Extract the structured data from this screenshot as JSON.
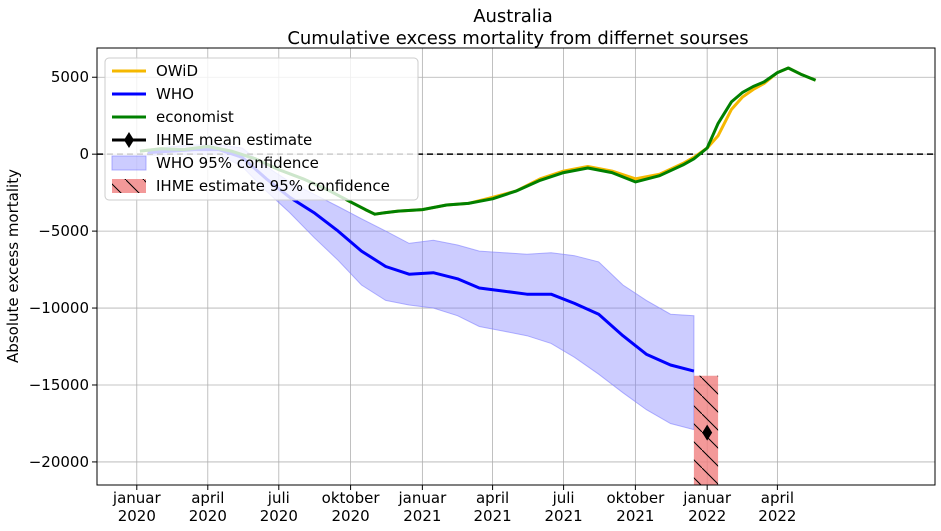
{
  "chart_data": {
    "type": "line",
    "title": "Australia",
    "subtitle": "Cumulative excess mortality from differnet sourses",
    "ylabel": "Absolute excess mortality",
    "xlabel": "",
    "ylim": [
      -21500,
      6900
    ],
    "yticks": [
      5000,
      0,
      -5000,
      -10000,
      -15000,
      -20000
    ],
    "ytick_labels": [
      "5000",
      "0",
      "−5000",
      "−10000",
      "−15000",
      "−20000"
    ],
    "xlim": [
      "2019-11-11",
      "2022-10-20"
    ],
    "xticks": [
      {
        "date": "2020-01-01",
        "month": "januar",
        "year": "2020"
      },
      {
        "date": "2020-04-01",
        "month": "april",
        "year": "2020"
      },
      {
        "date": "2020-07-01",
        "month": "juli",
        "year": "2020"
      },
      {
        "date": "2020-10-01",
        "month": "oktober",
        "year": "2020"
      },
      {
        "date": "2021-01-01",
        "month": "januar",
        "year": "2021"
      },
      {
        "date": "2021-04-01",
        "month": "april",
        "year": "2021"
      },
      {
        "date": "2021-07-01",
        "month": "juli",
        "year": "2021"
      },
      {
        "date": "2021-10-01",
        "month": "oktober",
        "year": "2021"
      },
      {
        "date": "2022-01-01",
        "month": "januar",
        "year": "2022"
      },
      {
        "date": "2022-04-01",
        "month": "april",
        "year": "2022"
      }
    ],
    "grid": true,
    "zero_line": {
      "y": 0,
      "style": "dashed",
      "color": "#000000"
    },
    "legend_position": "upper-left",
    "series": [
      {
        "name": "OWiD",
        "color": "#f5b800",
        "x": [
          "2020-01-05",
          "2020-02-01",
          "2020-03-01",
          "2020-04-01",
          "2020-05-01",
          "2020-06-01",
          "2020-07-01",
          "2020-08-01",
          "2020-09-01",
          "2020-10-01",
          "2020-10-20",
          "2020-11-01",
          "2020-11-15",
          "2020-12-01",
          "2021-01-01",
          "2021-02-01",
          "2021-03-01",
          "2021-04-01",
          "2021-05-01",
          "2021-06-01",
          "2021-07-01",
          "2021-08-01",
          "2021-09-01",
          "2021-10-01",
          "2021-11-01",
          "2021-12-01",
          "2021-12-15",
          "2022-01-01",
          "2022-01-15",
          "2022-02-01",
          "2022-02-15",
          "2022-03-01",
          "2022-03-15",
          "2022-04-01",
          "2022-04-15",
          "2022-05-01",
          "2022-05-20"
        ],
        "values": [
          200,
          350,
          300,
          500,
          200,
          -300,
          -1000,
          -1600,
          -2300,
          -3100,
          -3600,
          -3900,
          -3800,
          -3700,
          -3600,
          -3300,
          -3200,
          -2800,
          -2400,
          -1600,
          -1100,
          -800,
          -1100,
          -1600,
          -1300,
          -600,
          -200,
          400,
          1200,
          2900,
          3700,
          4200,
          4600,
          5300,
          5600,
          5200,
          4800
        ]
      },
      {
        "name": "WHO",
        "color": "#0000ff",
        "x": [
          "2020-01-15",
          "2020-02-15",
          "2020-03-15",
          "2020-04-15",
          "2020-05-15",
          "2020-06-15",
          "2020-07-15",
          "2020-08-15",
          "2020-09-15",
          "2020-10-15",
          "2020-11-15",
          "2020-12-15",
          "2021-01-15",
          "2021-02-15",
          "2021-03-15",
          "2021-04-15",
          "2021-05-15",
          "2021-06-15",
          "2021-07-15",
          "2021-08-15",
          "2021-09-15",
          "2021-10-15",
          "2021-11-15",
          "2021-12-15"
        ],
        "values": [
          100,
          200,
          300,
          300,
          -200,
          -1600,
          -2800,
          -3800,
          -5000,
          -6300,
          -7300,
          -7800,
          -7700,
          -8100,
          -8700,
          -8900,
          -9100,
          -9100,
          -9700,
          -10400,
          -11800,
          -13000,
          -13700,
          -14100
        ]
      },
      {
        "name": "economist",
        "color": "#008000",
        "x": [
          "2020-01-05",
          "2020-02-01",
          "2020-03-01",
          "2020-04-01",
          "2020-05-01",
          "2020-06-01",
          "2020-07-01",
          "2020-08-01",
          "2020-09-01",
          "2020-10-01",
          "2020-10-20",
          "2020-11-01",
          "2020-11-15",
          "2020-12-01",
          "2021-01-01",
          "2021-02-01",
          "2021-03-01",
          "2021-04-01",
          "2021-05-01",
          "2021-06-01",
          "2021-07-01",
          "2021-08-01",
          "2021-09-01",
          "2021-10-01",
          "2021-11-01",
          "2021-12-01",
          "2021-12-15",
          "2022-01-01",
          "2022-01-15",
          "2022-02-01",
          "2022-02-15",
          "2022-03-01",
          "2022-03-15",
          "2022-04-01",
          "2022-04-15",
          "2022-05-01",
          "2022-05-20"
        ],
        "values": [
          200,
          350,
          300,
          500,
          200,
          -300,
          -1000,
          -1600,
          -2300,
          -3100,
          -3600,
          -3900,
          -3800,
          -3700,
          -3600,
          -3300,
          -3200,
          -2900,
          -2400,
          -1700,
          -1200,
          -900,
          -1200,
          -1800,
          -1400,
          -700,
          -300,
          400,
          2000,
          3400,
          4000,
          4400,
          4700,
          5300,
          5600,
          5200,
          4800
        ]
      }
    ],
    "ihme_mean": {
      "name": "IHME mean estimate",
      "x": "2022-01-01",
      "value": -18100,
      "color": "#000000"
    },
    "who_ci": {
      "name": "WHO 95% confidence",
      "color": "#8080ff",
      "x": [
        "2020-01-15",
        "2020-02-15",
        "2020-03-15",
        "2020-04-15",
        "2020-05-15",
        "2020-06-15",
        "2020-07-15",
        "2020-08-15",
        "2020-09-15",
        "2020-10-15",
        "2020-11-15",
        "2020-12-15",
        "2021-01-15",
        "2021-02-15",
        "2021-03-15",
        "2021-04-15",
        "2021-05-15",
        "2021-06-15",
        "2021-07-15",
        "2021-08-15",
        "2021-09-15",
        "2021-10-15",
        "2021-11-15",
        "2021-12-15"
      ],
      "lower": [
        -100,
        0,
        0,
        0,
        -800,
        -2400,
        -3800,
        -5400,
        -6900,
        -8500,
        -9500,
        -9800,
        -10000,
        -10500,
        -11200,
        -11500,
        -11800,
        -12300,
        -13200,
        -14300,
        -15500,
        -16600,
        -17500,
        -17900
      ],
      "upper": [
        300,
        500,
        600,
        600,
        400,
        -800,
        -1800,
        -2600,
        -3400,
        -4200,
        -5000,
        -5800,
        -5600,
        -5900,
        -6300,
        -6400,
        -6500,
        -6400,
        -6600,
        -7000,
        -8500,
        -9500,
        -10400,
        -10500
      ]
    },
    "ihme_ci": {
      "name": " IHME estimate 95% confidence",
      "x_start": "2021-12-15",
      "x_end": "2022-01-15",
      "lower": -21500,
      "upper": -14400,
      "color": "#f08080"
    }
  }
}
